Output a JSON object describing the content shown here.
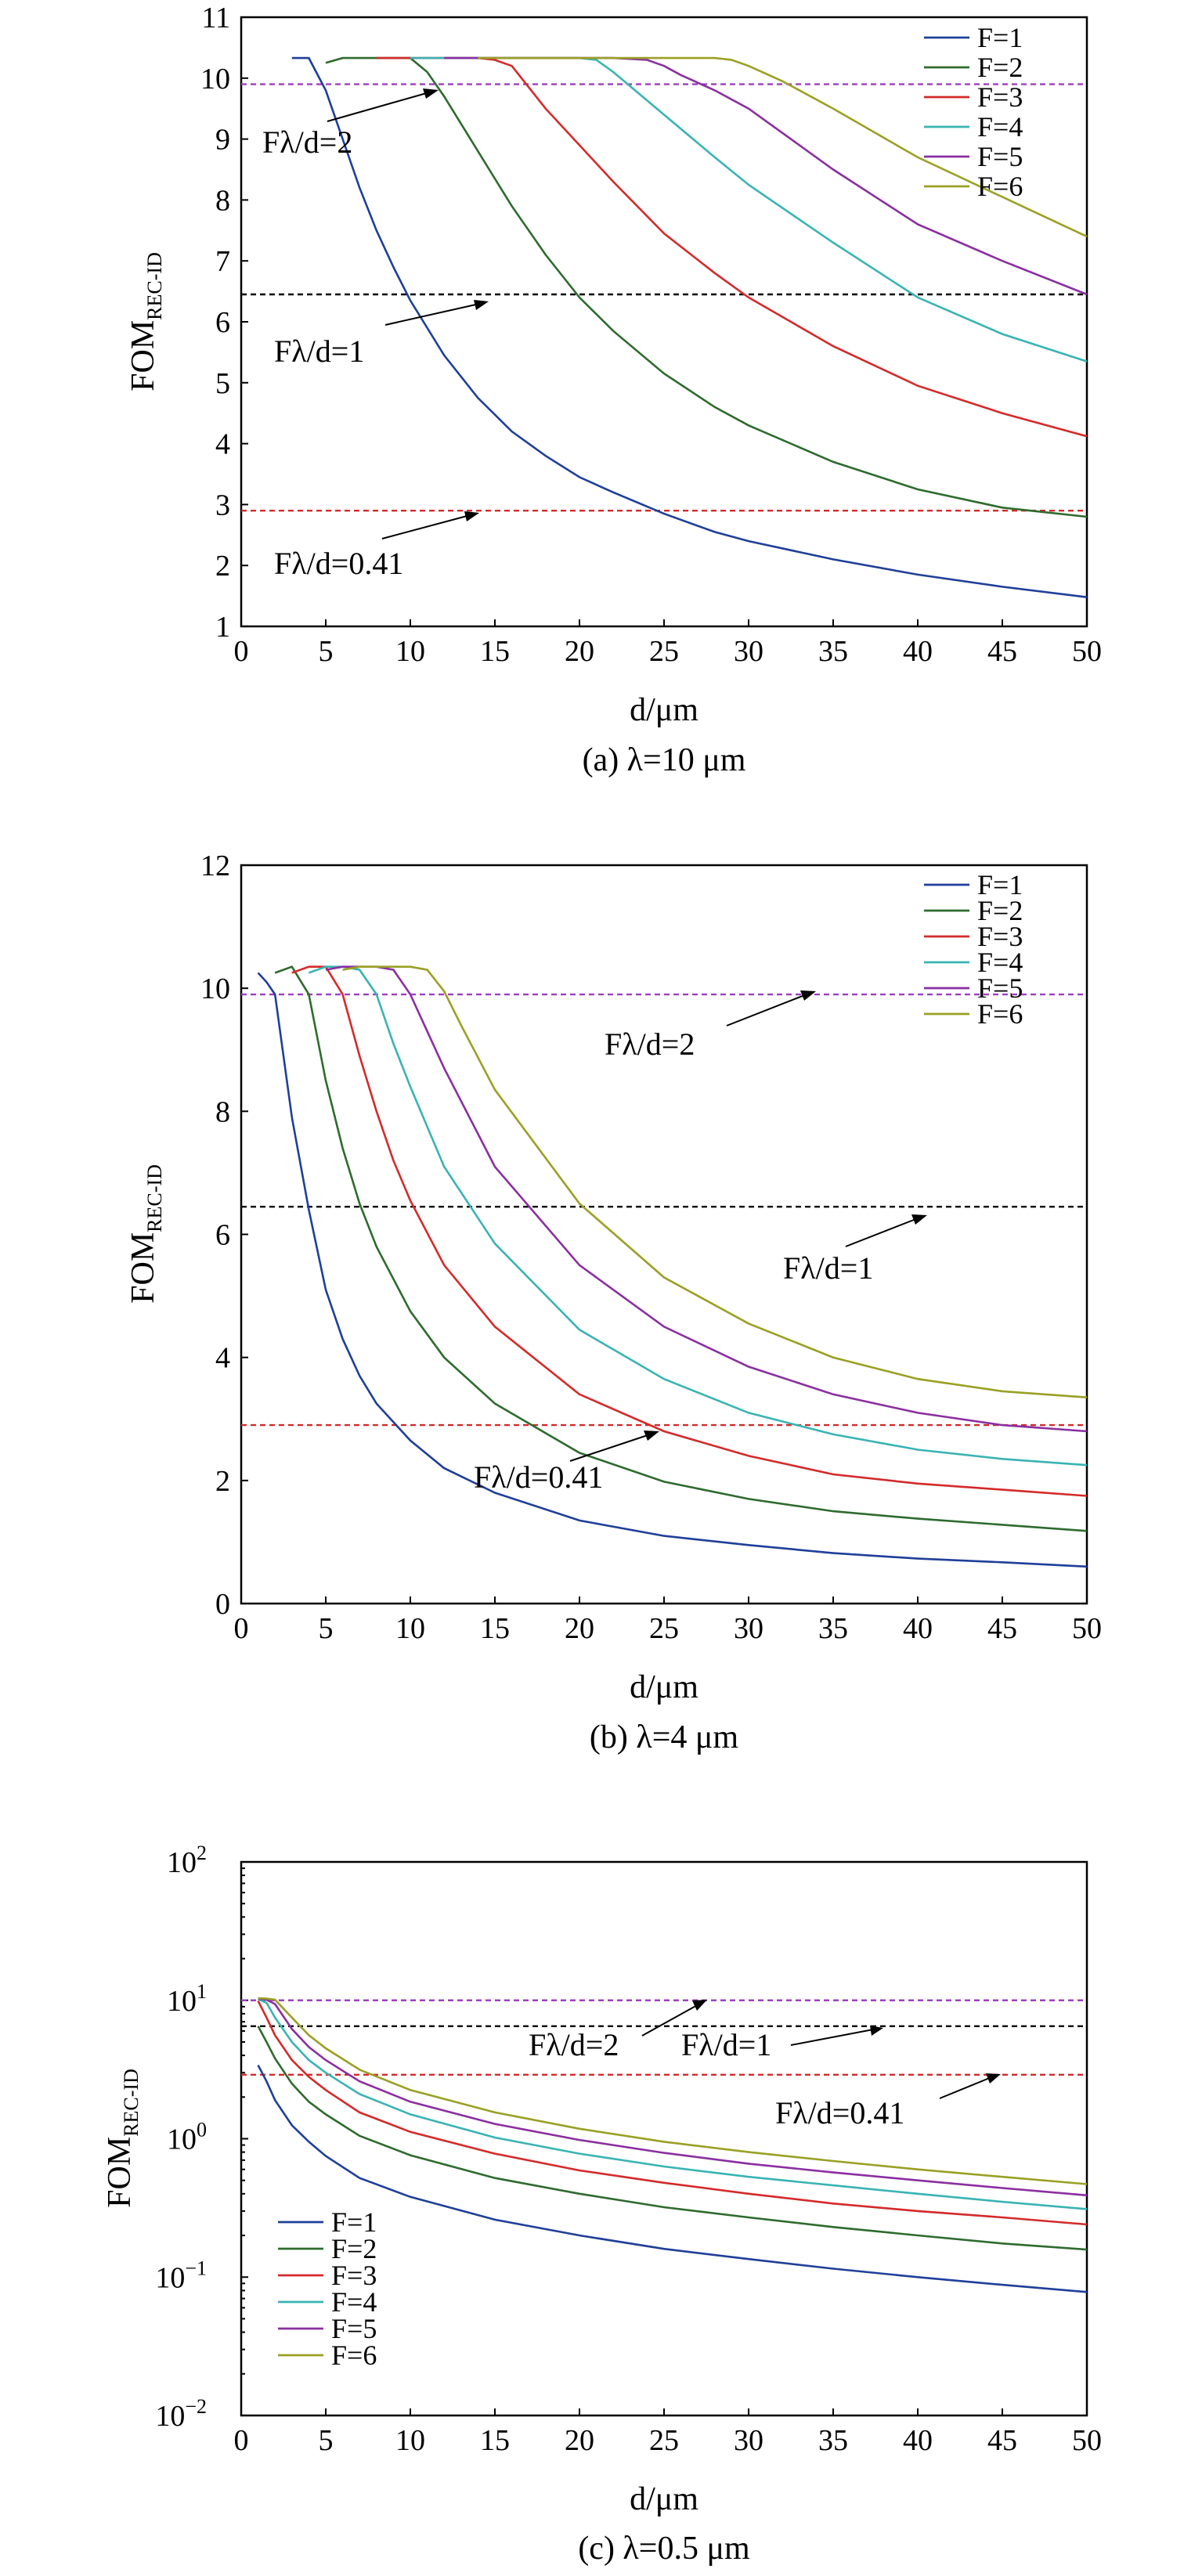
{
  "chart_data": [
    {
      "type": "line",
      "panel": "a",
      "caption": "(a) λ=10 μm",
      "xlabel": "d/μm",
      "ylabel": "FOM",
      "ylabel_sub": "REC-ID",
      "xlim": [
        0,
        50
      ],
      "ylim": [
        1,
        11
      ],
      "yscale": "linear",
      "xticks": [
        0,
        5,
        10,
        15,
        20,
        25,
        30,
        35,
        40,
        45,
        50
      ],
      "yticks": [
        1,
        2,
        3,
        4,
        5,
        6,
        7,
        8,
        9,
        10,
        11
      ],
      "legend_position": "top-right",
      "series": [
        {
          "name": "F=1",
          "color": "#1f3f99",
          "x": [
            3,
            4,
            5,
            6,
            7,
            8,
            9,
            10,
            12,
            14,
            16,
            18,
            20,
            22,
            25,
            28,
            30,
            35,
            40,
            45,
            50
          ],
          "y": [
            10.33,
            10.33,
            9.8,
            9.0,
            8.2,
            7.5,
            6.9,
            6.35,
            5.45,
            4.75,
            4.2,
            3.8,
            3.45,
            3.2,
            2.85,
            2.55,
            2.4,
            2.1,
            1.85,
            1.65,
            1.48
          ]
        },
        {
          "name": "F=2",
          "color": "#2e6b2e",
          "x": [
            5,
            6,
            8,
            10,
            11,
            12,
            14,
            16,
            18,
            20,
            22,
            25,
            28,
            30,
            35,
            40,
            45,
            50
          ],
          "y": [
            10.25,
            10.33,
            10.33,
            10.33,
            10.1,
            9.7,
            8.8,
            7.9,
            7.1,
            6.4,
            5.85,
            5.15,
            4.6,
            4.3,
            3.7,
            3.25,
            2.95,
            2.8
          ]
        },
        {
          "name": "F=3",
          "color": "#d42a2a",
          "x": [
            8,
            10,
            12,
            14,
            15,
            16,
            18,
            20,
            22,
            25,
            28,
            30,
            35,
            40,
            45,
            50
          ],
          "y": [
            10.33,
            10.33,
            10.33,
            10.33,
            10.3,
            10.2,
            9.5,
            8.9,
            8.3,
            7.45,
            6.8,
            6.4,
            5.6,
            4.95,
            4.5,
            4.12
          ]
        },
        {
          "name": "F=4",
          "color": "#3ab3b3",
          "x": [
            10,
            12,
            14,
            16,
            18,
            20,
            21,
            22,
            25,
            28,
            30,
            35,
            40,
            45,
            50
          ],
          "y": [
            10.33,
            10.33,
            10.33,
            10.33,
            10.33,
            10.33,
            10.3,
            10.1,
            9.4,
            8.7,
            8.25,
            7.3,
            6.4,
            5.8,
            5.35
          ]
        },
        {
          "name": "F=5",
          "color": "#8a2fa0",
          "x": [
            12,
            15,
            18,
            20,
            22,
            24,
            25,
            26,
            28,
            30,
            35,
            40,
            45,
            50
          ],
          "y": [
            10.33,
            10.33,
            10.33,
            10.33,
            10.33,
            10.3,
            10.2,
            10.05,
            9.8,
            9.5,
            8.5,
            7.6,
            7.0,
            6.45
          ]
        },
        {
          "name": "F=6",
          "color": "#9aa024",
          "x": [
            14,
            18,
            20,
            24,
            28,
            29,
            30,
            32,
            35,
            40,
            45,
            50
          ],
          "y": [
            10.33,
            10.33,
            10.33,
            10.33,
            10.33,
            10.3,
            10.2,
            9.95,
            9.5,
            8.7,
            8.05,
            7.4
          ]
        }
      ],
      "reference_lines": [
        {
          "label": "Fλ/d=2",
          "y": 9.9,
          "color": "#9d3fbf"
        },
        {
          "label": "Fλ/d=1",
          "y": 6.45,
          "color": "#000000"
        },
        {
          "label": "Fλ/d=0.41",
          "y": 2.9,
          "color": "#d42a2a"
        }
      ],
      "annotations": [
        "Fλ/d=2",
        "Fλ/d=1",
        "Fλ/d=0.41"
      ]
    },
    {
      "type": "line",
      "panel": "b",
      "caption": "(b) λ=4 μm",
      "xlabel": "d/μm",
      "ylabel": "FOM",
      "ylabel_sub": "REC-ID",
      "xlim": [
        0,
        50
      ],
      "ylim": [
        0,
        12
      ],
      "yscale": "linear",
      "xticks": [
        0,
        5,
        10,
        15,
        20,
        25,
        30,
        35,
        40,
        45,
        50
      ],
      "yticks": [
        0,
        2,
        4,
        6,
        8,
        10,
        12
      ],
      "legend_position": "top-right",
      "series": [
        {
          "name": "F=1",
          "color": "#1f3f99",
          "x": [
            1,
            1.5,
            2,
            3,
            4,
            5,
            6,
            7,
            8,
            10,
            12,
            15,
            20,
            25,
            30,
            35,
            40,
            45,
            50
          ],
          "y": [
            10.25,
            10.1,
            9.9,
            7.9,
            6.4,
            5.1,
            4.3,
            3.7,
            3.25,
            2.65,
            2.2,
            1.8,
            1.35,
            1.1,
            0.95,
            0.82,
            0.73,
            0.67,
            0.6
          ]
        },
        {
          "name": "F=2",
          "color": "#2e6b2e",
          "x": [
            2,
            3,
            4,
            5,
            6,
            7,
            8,
            10,
            12,
            15,
            20,
            25,
            30,
            35,
            40,
            45,
            50
          ],
          "y": [
            10.25,
            10.35,
            9.9,
            8.5,
            7.4,
            6.5,
            5.8,
            4.75,
            4.0,
            3.25,
            2.45,
            1.98,
            1.7,
            1.5,
            1.38,
            1.28,
            1.18
          ]
        },
        {
          "name": "F=3",
          "color": "#d42a2a",
          "x": [
            3,
            4,
            5,
            6,
            7,
            8,
            9,
            10,
            12,
            15,
            20,
            25,
            30,
            35,
            40,
            45,
            50
          ],
          "y": [
            10.25,
            10.35,
            10.35,
            9.9,
            8.9,
            8.0,
            7.2,
            6.55,
            5.5,
            4.5,
            3.4,
            2.8,
            2.4,
            2.1,
            1.95,
            1.85,
            1.75
          ]
        },
        {
          "name": "F=4",
          "color": "#3ab3b3",
          "x": [
            4,
            5,
            6,
            7,
            8,
            9,
            10,
            12,
            15,
            20,
            25,
            30,
            35,
            40,
            45,
            50
          ],
          "y": [
            10.25,
            10.35,
            10.35,
            10.3,
            9.9,
            9.1,
            8.4,
            7.1,
            5.85,
            4.45,
            3.65,
            3.1,
            2.75,
            2.5,
            2.35,
            2.25
          ]
        },
        {
          "name": "F=5",
          "color": "#8a2fa0",
          "x": [
            5,
            6,
            7,
            8,
            9,
            10,
            11,
            12,
            15,
            20,
            25,
            30,
            35,
            40,
            45,
            50
          ],
          "y": [
            10.3,
            10.35,
            10.35,
            10.35,
            10.3,
            9.9,
            9.3,
            8.7,
            7.1,
            5.5,
            4.5,
            3.85,
            3.4,
            3.1,
            2.9,
            2.8
          ]
        },
        {
          "name": "F=6",
          "color": "#9aa024",
          "x": [
            6,
            7,
            8,
            9,
            10,
            11,
            12,
            13,
            15,
            20,
            25,
            30,
            35,
            40,
            45,
            50
          ],
          "y": [
            10.3,
            10.35,
            10.35,
            10.35,
            10.35,
            10.3,
            9.95,
            9.4,
            8.35,
            6.5,
            5.3,
            4.55,
            4.0,
            3.65,
            3.45,
            3.35
          ]
        }
      ],
      "reference_lines": [
        {
          "label": "Fλ/d=2",
          "y": 9.9,
          "color": "#9d3fbf"
        },
        {
          "label": "Fλ/d=1",
          "y": 6.45,
          "color": "#000000"
        },
        {
          "label": "Fλ/d=0.41",
          "y": 2.9,
          "color": "#d42a2a"
        }
      ],
      "annotations": [
        "Fλ/d=2",
        "Fλ/d=1",
        "Fλ/d=0.41"
      ]
    },
    {
      "type": "line",
      "panel": "c",
      "caption": "(c) λ=0.5 μm",
      "xlabel": "d/μm",
      "ylabel": "FOM",
      "ylabel_sub": "REC-ID",
      "xlim": [
        0,
        50
      ],
      "ylim": [
        0.01,
        100
      ],
      "yscale": "log",
      "xticks": [
        0,
        5,
        10,
        15,
        20,
        25,
        30,
        35,
        40,
        45,
        50
      ],
      "yticks": [
        0.01,
        0.1,
        1,
        10,
        100
      ],
      "ytick_labels": [
        {
          "base": "10",
          "exp": "−2"
        },
        {
          "base": "10",
          "exp": "−1"
        },
        {
          "base": "10",
          "exp": "0"
        },
        {
          "base": "10",
          "exp": "1"
        },
        {
          "base": "10",
          "exp": "2"
        }
      ],
      "legend_position": "bottom-left",
      "series": [
        {
          "name": "F=1",
          "color": "#1f3f99",
          "x": [
            1,
            1.5,
            2,
            3,
            4,
            5,
            7,
            10,
            15,
            20,
            25,
            30,
            35,
            40,
            45,
            50
          ],
          "y": [
            3.4,
            2.6,
            1.9,
            1.25,
            0.95,
            0.75,
            0.52,
            0.38,
            0.26,
            0.2,
            0.16,
            0.135,
            0.115,
            0.1,
            0.088,
            0.078
          ]
        },
        {
          "name": "F=2",
          "color": "#2e6b2e",
          "x": [
            1,
            1.5,
            2,
            3,
            4,
            5,
            7,
            10,
            15,
            20,
            25,
            30,
            35,
            40,
            45,
            50
          ],
          "y": [
            6.5,
            5.0,
            3.8,
            2.5,
            1.85,
            1.5,
            1.05,
            0.76,
            0.52,
            0.4,
            0.32,
            0.27,
            0.23,
            0.2,
            0.175,
            0.158
          ]
        },
        {
          "name": "F=3",
          "color": "#d42a2a",
          "x": [
            1,
            1.5,
            2,
            3,
            4,
            5,
            7,
            10,
            15,
            20,
            25,
            30,
            35,
            40,
            45,
            50
          ],
          "y": [
            9.9,
            7.5,
            5.6,
            3.7,
            2.8,
            2.25,
            1.55,
            1.12,
            0.78,
            0.59,
            0.48,
            0.4,
            0.34,
            0.3,
            0.27,
            0.24
          ]
        },
        {
          "name": "F=4",
          "color": "#3ab3b3",
          "x": [
            1,
            1.5,
            2,
            3,
            4,
            5,
            7,
            10,
            15,
            20,
            25,
            30,
            35,
            40,
            45,
            50
          ],
          "y": [
            10.2,
            9.6,
            7.5,
            5.0,
            3.7,
            3.0,
            2.1,
            1.5,
            1.02,
            0.78,
            0.63,
            0.53,
            0.46,
            0.4,
            0.35,
            0.31
          ]
        },
        {
          "name": "F=5",
          "color": "#8a2fa0",
          "x": [
            1,
            1.5,
            2,
            3,
            4,
            5,
            7,
            10,
            15,
            20,
            25,
            30,
            35,
            40,
            45,
            50
          ],
          "y": [
            10.3,
            10.1,
            9.4,
            6.2,
            4.6,
            3.7,
            2.6,
            1.85,
            1.28,
            0.98,
            0.79,
            0.66,
            0.57,
            0.5,
            0.44,
            0.39
          ]
        },
        {
          "name": "F=6",
          "color": "#9aa024",
          "x": [
            1,
            1.5,
            2,
            3,
            4,
            5,
            7,
            10,
            15,
            20,
            25,
            30,
            35,
            40,
            45,
            50
          ],
          "y": [
            10.35,
            10.3,
            10.1,
            7.5,
            5.6,
            4.5,
            3.15,
            2.25,
            1.55,
            1.18,
            0.95,
            0.8,
            0.69,
            0.6,
            0.53,
            0.47
          ]
        }
      ],
      "reference_lines": [
        {
          "label": "Fλ/d=2",
          "y": 10,
          "color": "#9d3fbf"
        },
        {
          "label": "Fλ/d=1",
          "y": 6.5,
          "color": "#000000"
        },
        {
          "label": "Fλ/d=0.41",
          "y": 2.9,
          "color": "#d42a2a"
        }
      ],
      "annotations": [
        "Fλ/d=2",
        "Fλ/d=1",
        "Fλ/d=0.41"
      ]
    }
  ]
}
